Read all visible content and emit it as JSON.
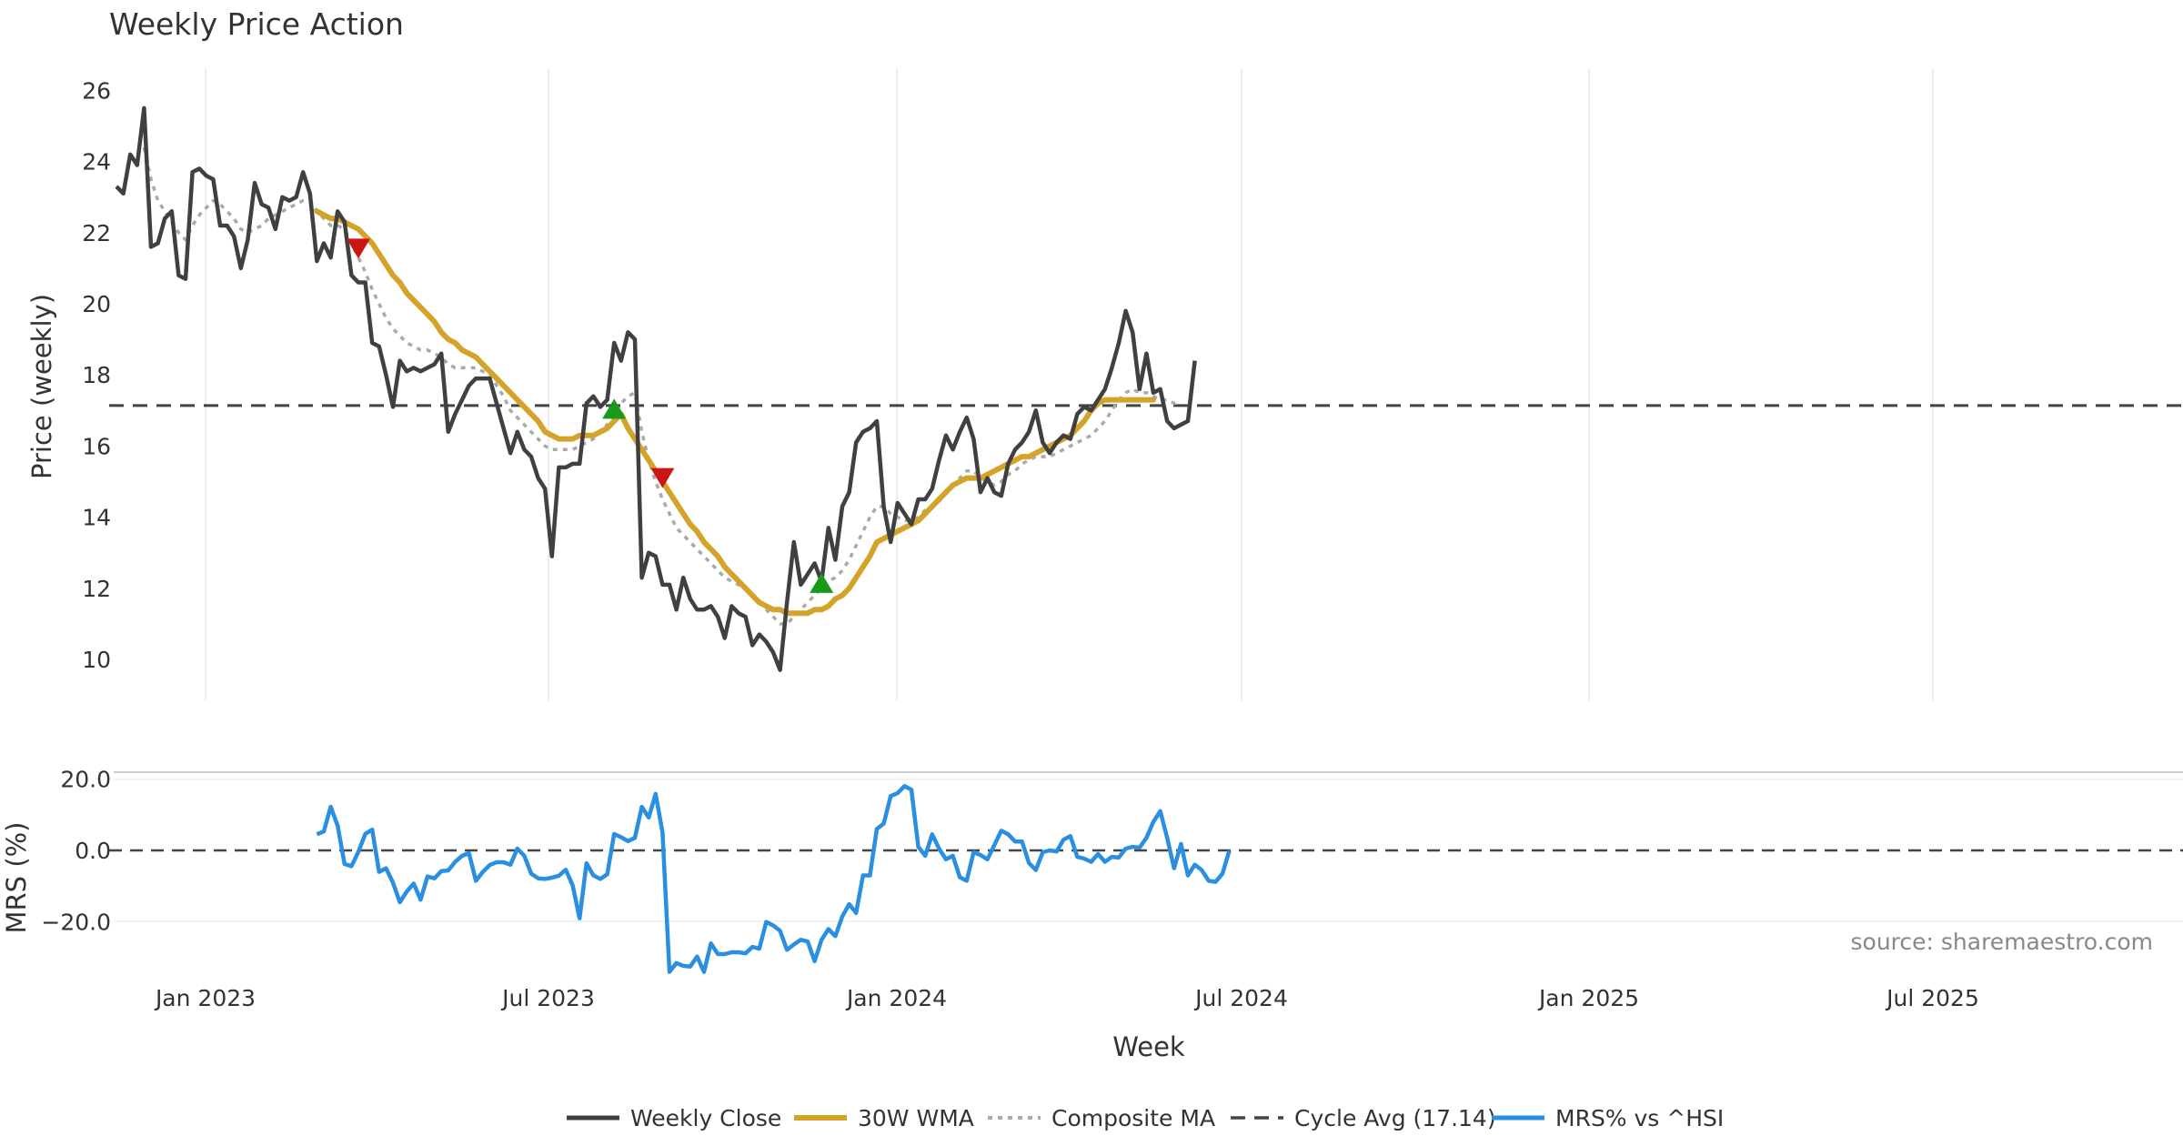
{
  "chart_data": {
    "type": "line",
    "title": "Weekly Price Action",
    "xlabel": "Week",
    "x_ticks": [
      "Jan 2023",
      "Jul 2023",
      "Jan 2024",
      "Jul 2024",
      "Jan 2025",
      "Jul 2025"
    ],
    "source": "source: sharemaestro.com",
    "colors": {
      "weekly_close": "#404040",
      "wma": "#d4a32a",
      "composite": "#aaaaaa",
      "cycle": "#444444",
      "mrs": "#2a8fe0",
      "up_marker": "#1a9a1a",
      "down_marker": "#cc1515"
    },
    "price_panel": {
      "ylabel": "Price (weekly)",
      "yticks": [
        10,
        12,
        14,
        16,
        18,
        20,
        22,
        24,
        26
      ],
      "ylim": [
        8.9,
        26.5
      ],
      "cycle_avg": 17.14,
      "series": {
        "weekly_close": [
          23.3,
          23.1,
          24.2,
          23.9,
          25.5,
          21.6,
          21.7,
          22.4,
          22.6,
          20.8,
          20.7,
          23.7,
          23.8,
          23.6,
          23.5,
          22.2,
          22.2,
          21.9,
          21.0,
          21.8,
          23.4,
          22.8,
          22.7,
          22.1,
          23.0,
          22.9,
          23.0,
          23.7,
          23.1,
          21.2,
          21.7,
          21.3,
          22.6,
          22.3,
          20.8,
          20.6,
          20.6,
          18.9,
          18.8,
          18.0,
          17.1,
          18.4,
          18.1,
          18.2,
          18.1,
          18.2,
          18.3,
          18.6,
          16.4,
          16.9,
          17.3,
          17.7,
          17.9,
          17.9,
          17.9,
          17.2,
          16.5,
          15.8,
          16.4,
          15.9,
          15.7,
          15.1,
          14.8,
          12.9,
          15.4,
          15.4,
          15.5,
          15.5,
          17.2,
          17.4,
          17.1,
          17.3,
          18.9,
          18.4,
          19.2,
          19.0,
          12.3,
          13.0,
          12.9,
          12.1,
          12.1,
          11.4,
          12.3,
          11.7,
          11.4,
          11.4,
          11.5,
          11.2,
          10.6,
          11.5,
          11.3,
          11.2,
          10.4,
          10.7,
          10.5,
          10.2,
          9.7,
          11.6,
          13.3,
          12.1,
          12.4,
          12.7,
          12.2,
          13.7,
          12.8,
          14.3,
          14.7,
          16.1,
          16.4,
          16.5,
          16.7,
          14.3,
          13.3,
          14.4,
          14.1,
          13.8,
          14.5,
          14.5,
          14.8,
          15.6,
          16.3,
          15.9,
          16.4,
          16.8,
          16.2,
          14.7,
          15.1,
          14.7,
          14.6,
          15.5,
          15.9,
          16.1,
          16.4,
          17.0,
          16.1,
          15.8,
          16.1,
          16.3,
          16.2,
          16.9,
          17.1,
          17.0,
          17.3,
          17.6,
          18.2,
          18.9,
          19.8,
          19.2,
          17.6,
          18.6,
          17.5,
          17.6,
          16.7,
          16.5,
          16.6,
          16.7,
          18.4
        ],
        "wma_30w": [
          null,
          null,
          null,
          null,
          null,
          null,
          null,
          null,
          null,
          null,
          null,
          null,
          null,
          null,
          null,
          null,
          null,
          null,
          null,
          null,
          null,
          null,
          null,
          null,
          null,
          null,
          null,
          null,
          null,
          22.6,
          22.5,
          22.4,
          22.4,
          22.3,
          22.2,
          22.1,
          21.9,
          21.7,
          21.4,
          21.1,
          20.8,
          20.6,
          20.3,
          20.1,
          19.9,
          19.7,
          19.5,
          19.2,
          19.0,
          18.9,
          18.7,
          18.6,
          18.5,
          18.3,
          18.1,
          17.9,
          17.7,
          17.5,
          17.3,
          17.1,
          16.9,
          16.7,
          16.4,
          16.3,
          16.2,
          16.2,
          16.2,
          16.3,
          16.3,
          16.3,
          16.4,
          16.5,
          16.7,
          16.9,
          16.5,
          16.2,
          15.9,
          15.6,
          15.3,
          15.0,
          14.7,
          14.4,
          14.1,
          13.8,
          13.6,
          13.3,
          13.1,
          12.9,
          12.6,
          12.4,
          12.2,
          12.0,
          11.8,
          11.6,
          11.5,
          11.4,
          11.4,
          11.3,
          11.3,
          11.3,
          11.3,
          11.4,
          11.4,
          11.5,
          11.7,
          11.8,
          12.0,
          12.3,
          12.6,
          12.9,
          13.3,
          13.4,
          13.5,
          13.6,
          13.7,
          13.8,
          13.9,
          14.1,
          14.3,
          14.5,
          14.7,
          14.9,
          15.0,
          15.1,
          15.1,
          15.1,
          15.2,
          15.3,
          15.4,
          15.5,
          15.6,
          15.7,
          15.7,
          15.8,
          15.9,
          16.0,
          16.1,
          16.2,
          16.3,
          16.5,
          16.7,
          17.0,
          17.2,
          17.3,
          17.3,
          17.3,
          17.3,
          17.3,
          17.3,
          17.3,
          17.3
        ],
        "composite_ma": [
          null,
          null,
          null,
          null,
          24.4,
          23.5,
          22.9,
          22.6,
          22.3,
          22.0,
          21.8,
          22.2,
          22.5,
          22.7,
          22.9,
          22.8,
          22.6,
          22.4,
          22.1,
          22.0,
          22.1,
          22.2,
          22.4,
          22.5,
          22.6,
          22.7,
          22.8,
          22.9,
          22.9,
          22.6,
          22.4,
          22.2,
          22.2,
          22.1,
          21.7,
          21.3,
          20.9,
          20.4,
          20.0,
          19.6,
          19.3,
          19.1,
          18.9,
          18.8,
          18.7,
          18.7,
          18.6,
          18.5,
          18.3,
          18.2,
          18.2,
          18.2,
          18.2,
          18.1,
          18.0,
          17.7,
          17.4,
          17.0,
          16.8,
          16.6,
          16.4,
          16.2,
          16.0,
          15.9,
          15.9,
          15.9,
          15.9,
          16.0,
          16.1,
          16.2,
          16.4,
          16.6,
          16.9,
          17.2,
          17.4,
          17.5,
          16.4,
          15.6,
          15.0,
          14.5,
          14.1,
          13.7,
          13.5,
          13.3,
          13.1,
          12.9,
          12.7,
          12.5,
          12.3,
          12.2,
          12.1,
          12.0,
          11.8,
          11.6,
          11.4,
          11.2,
          11.0,
          11.0,
          11.2,
          11.4,
          11.6,
          11.8,
          12.0,
          12.2,
          12.3,
          12.5,
          12.8,
          13.2,
          13.6,
          14.0,
          14.3,
          14.3,
          14.1,
          14.0,
          13.9,
          13.9,
          14.0,
          14.2,
          14.3,
          14.5,
          14.7,
          14.9,
          15.1,
          15.3,
          15.3,
          15.1,
          15.0,
          14.9,
          15.0,
          15.2,
          15.3,
          15.5,
          15.6,
          15.7,
          15.7,
          15.7,
          15.8,
          15.9,
          16.0,
          16.1,
          16.2,
          16.3,
          16.5,
          16.7,
          17.0,
          17.3,
          17.5,
          17.6,
          17.5,
          17.5,
          17.4,
          17.3,
          17.3,
          17.2,
          17.2
        ],
        "mrs_pct": [
          null,
          null,
          null,
          null,
          null,
          null,
          null,
          null,
          null,
          null,
          null,
          null,
          null,
          null,
          null,
          null,
          null,
          null,
          null,
          null,
          null,
          null,
          null,
          null,
          null,
          null,
          null,
          null,
          null,
          4.5,
          5.3,
          12.2,
          6.9,
          -3.8,
          -4.4,
          -0.4,
          4.6,
          5.8,
          -6.0,
          -5.0,
          -9.0,
          -14.5,
          -11.5,
          -9.3,
          -13.8,
          -7.3,
          -7.8,
          -5.8,
          -5.6,
          -3.2,
          -1.5,
          -0.8,
          -8.5,
          -6.0,
          -4.1,
          -3.3,
          -3.3,
          -4.0,
          0.5,
          -1.5,
          -6.5,
          -7.8,
          -8.0,
          -7.6,
          -7.1,
          -5.4,
          -9.8,
          -19.0,
          -3.6,
          -7.0,
          -8.0,
          -6.7,
          4.6,
          3.7,
          2.6,
          3.5,
          12.2,
          9.2,
          15.8,
          5.0,
          -34.0,
          -31.5,
          -32.3,
          -32.5,
          -29.7,
          -34.0,
          -26.0,
          -29.0,
          -29.0,
          -28.5,
          -28.5,
          -28.8,
          -27.0,
          -27.5,
          -20.0,
          -21.0,
          -22.5,
          -27.8,
          -26.3,
          -25.0,
          -25.5,
          -31.0,
          -25.0,
          -22.0,
          -24.0,
          -18.5,
          -15.0,
          -17.5,
          -7.0,
          -7.0,
          6.0,
          7.5,
          15.2,
          16.0,
          18.0,
          17.0,
          1.0,
          -1.5,
          4.5,
          0.5,
          -2.5,
          -1.5,
          -7.5,
          -8.5,
          -0.5,
          -1.3,
          -2.5,
          1.5,
          5.5,
          4.5,
          2.5,
          2.5,
          -3.5,
          -5.5,
          -0.5,
          0.0,
          -0.3,
          3.0,
          4.0,
          -1.8,
          -2.3,
          -3.2,
          -1.0,
          -3.2,
          -1.8,
          -2.0,
          0.5,
          1.0,
          0.8,
          3.5,
          8.0,
          11.0,
          3.5,
          -5.0,
          1.8,
          -7.0,
          -4.0,
          -5.5,
          -8.5,
          -8.8,
          -6.5,
          0.0
        ]
      },
      "markers": [
        {
          "type": "down",
          "week": 35,
          "value": 21.55
        },
        {
          "type": "up",
          "week": 72,
          "value": 17.05
        },
        {
          "type": "down",
          "week": 79,
          "value": 15.1
        },
        {
          "type": "up",
          "week": 102,
          "value": 12.15
        }
      ]
    },
    "mrs_panel": {
      "ylabel": "MRS (%)",
      "yticks": [
        20.0,
        0.0,
        -20.0
      ],
      "ytick_labels": [
        "20.0",
        "0.0",
        "−20.0"
      ],
      "ylim": [
        -36,
        22
      ],
      "zero_line": 0.0
    },
    "legend": {
      "placement": "bottom-center",
      "entries": [
        {
          "label": "Weekly Close",
          "style": "solid",
          "color_key": "weekly_close"
        },
        {
          "label": "30W WMA",
          "style": "solid-thick",
          "color_key": "wma"
        },
        {
          "label": "Composite MA",
          "style": "dotted",
          "color_key": "composite"
        },
        {
          "label": "Cycle Avg (17.14)",
          "style": "dashed",
          "color_key": "cycle"
        },
        {
          "label": "MRS% vs ^HSI",
          "style": "solid",
          "color_key": "mrs"
        }
      ]
    }
  }
}
